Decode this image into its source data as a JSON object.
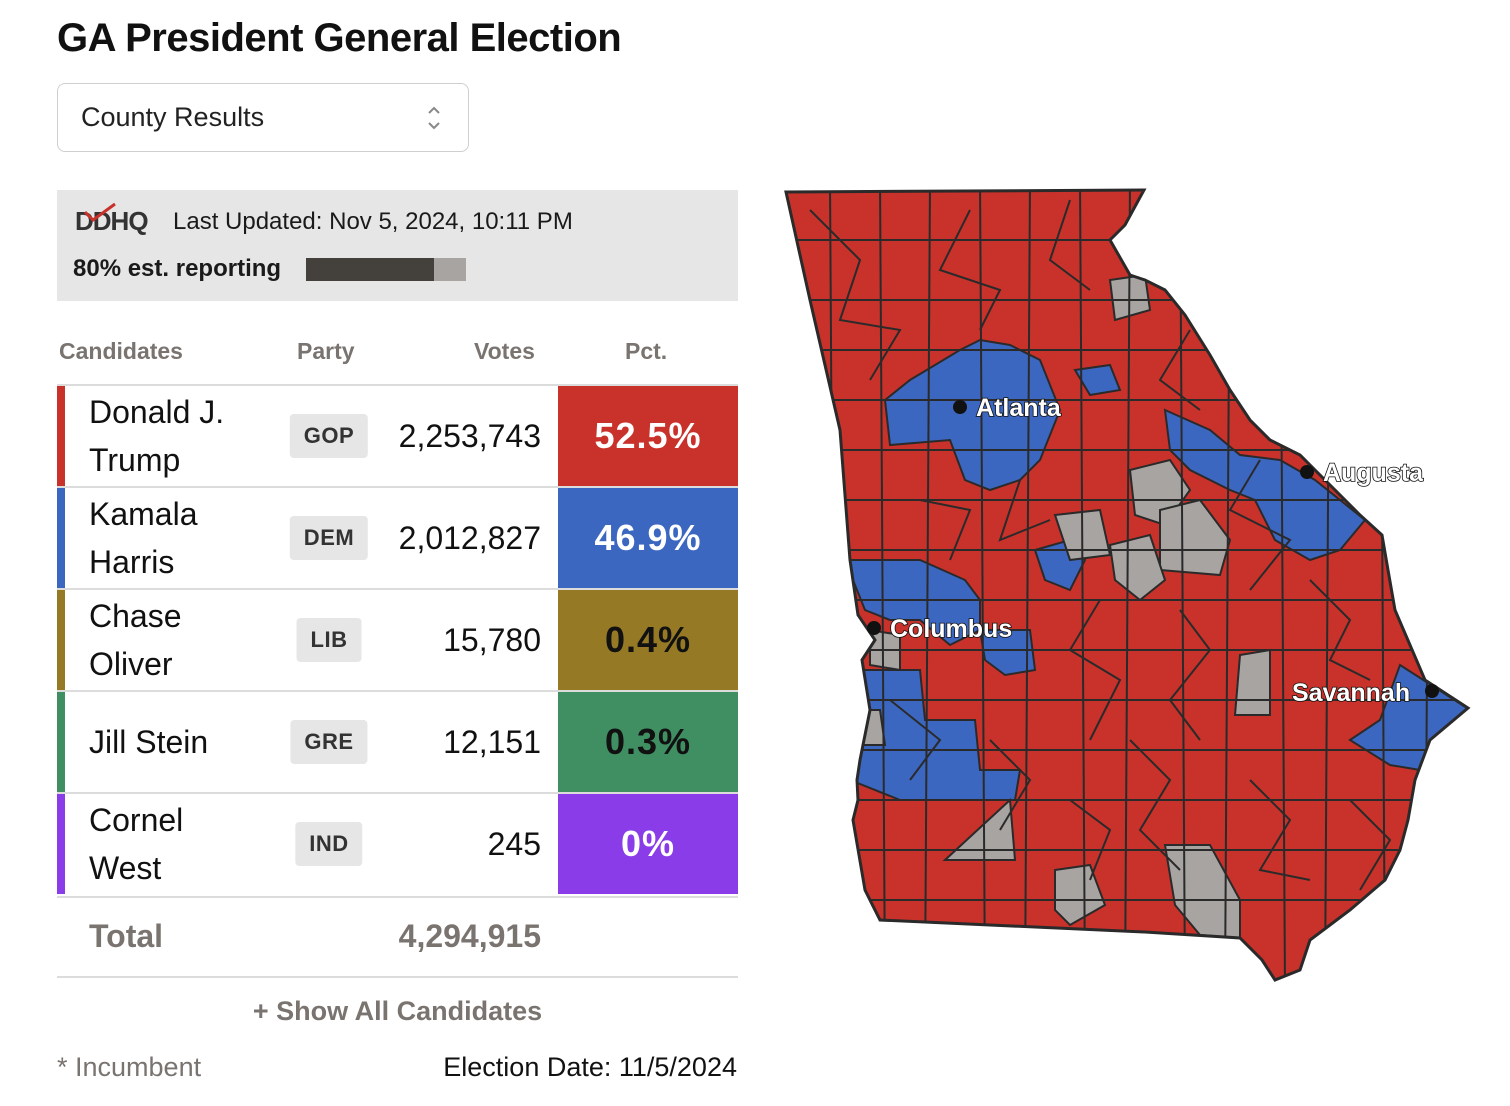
{
  "title": "GA President General Election",
  "view_select": {
    "value": "County Results"
  },
  "info": {
    "logo": "DDHQ",
    "last_updated": "Last Updated: Nov 5, 2024, 10:11 PM",
    "reporting_label": "80% est. reporting",
    "reporting_fraction": 0.8
  },
  "table": {
    "headers": [
      "Candidates",
      "Party",
      "Votes",
      "Pct."
    ],
    "rows": [
      {
        "first": "Donald J.",
        "last": "Trump",
        "party": "GOP",
        "votes": "2,253,743",
        "pct": "52.5%",
        "color": "#c8322a",
        "pct_text_color": "#ffffff"
      },
      {
        "first": "Kamala",
        "last": "Harris",
        "party": "DEM",
        "votes": "2,012,827",
        "pct": "46.9%",
        "color": "#3c67c0",
        "pct_text_color": "#ffffff"
      },
      {
        "first": "Chase",
        "last": "Oliver",
        "party": "LIB",
        "votes": "15,780",
        "pct": "0.4%",
        "color": "#957925",
        "pct_text_color": "#111111"
      },
      {
        "first": "Jill Stein",
        "last": "",
        "party": "GRE",
        "votes": "12,151",
        "pct": "0.3%",
        "color": "#3f8f63",
        "pct_text_color": "#111111"
      },
      {
        "first": "Cornel",
        "last": "West",
        "party": "IND",
        "votes": "245",
        "pct": "0%",
        "color": "#8a3ce8",
        "pct_text_color": "#ffffff"
      }
    ],
    "total_label": "Total",
    "total_votes": "4,294,915"
  },
  "show_all": "+ Show All Candidates",
  "incumbent_note": "* Incumbent",
  "election_date": "Election Date: 11/5/2024",
  "map": {
    "colors": {
      "gop": "#c8322a",
      "dem": "#3c67c0",
      "none": "#a7a4a2",
      "border": "#2a2a2a"
    },
    "cities": [
      "Atlanta",
      "Augusta",
      "Columbus",
      "Savannah"
    ]
  }
}
